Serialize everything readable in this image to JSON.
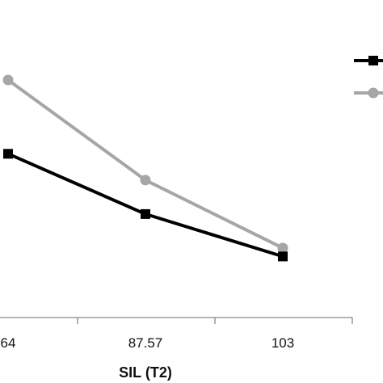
{
  "chart_data": {
    "type": "line",
    "xlabel": "SIL (T2)",
    "x_tick_labels": [
      "64",
      "87.57",
      "103"
    ],
    "series": [
      {
        "color": "#000000",
        "marker": "square",
        "values": [
          1.93,
          1.22,
          0.72
        ]
      },
      {
        "color": "#a6a6a6",
        "marker": "circle",
        "values": [
          2.8,
          1.62,
          0.82
        ]
      }
    ],
    "ylim": [
      0,
      3.5
    ],
    "grid": false,
    "legend_position": "top-right"
  }
}
